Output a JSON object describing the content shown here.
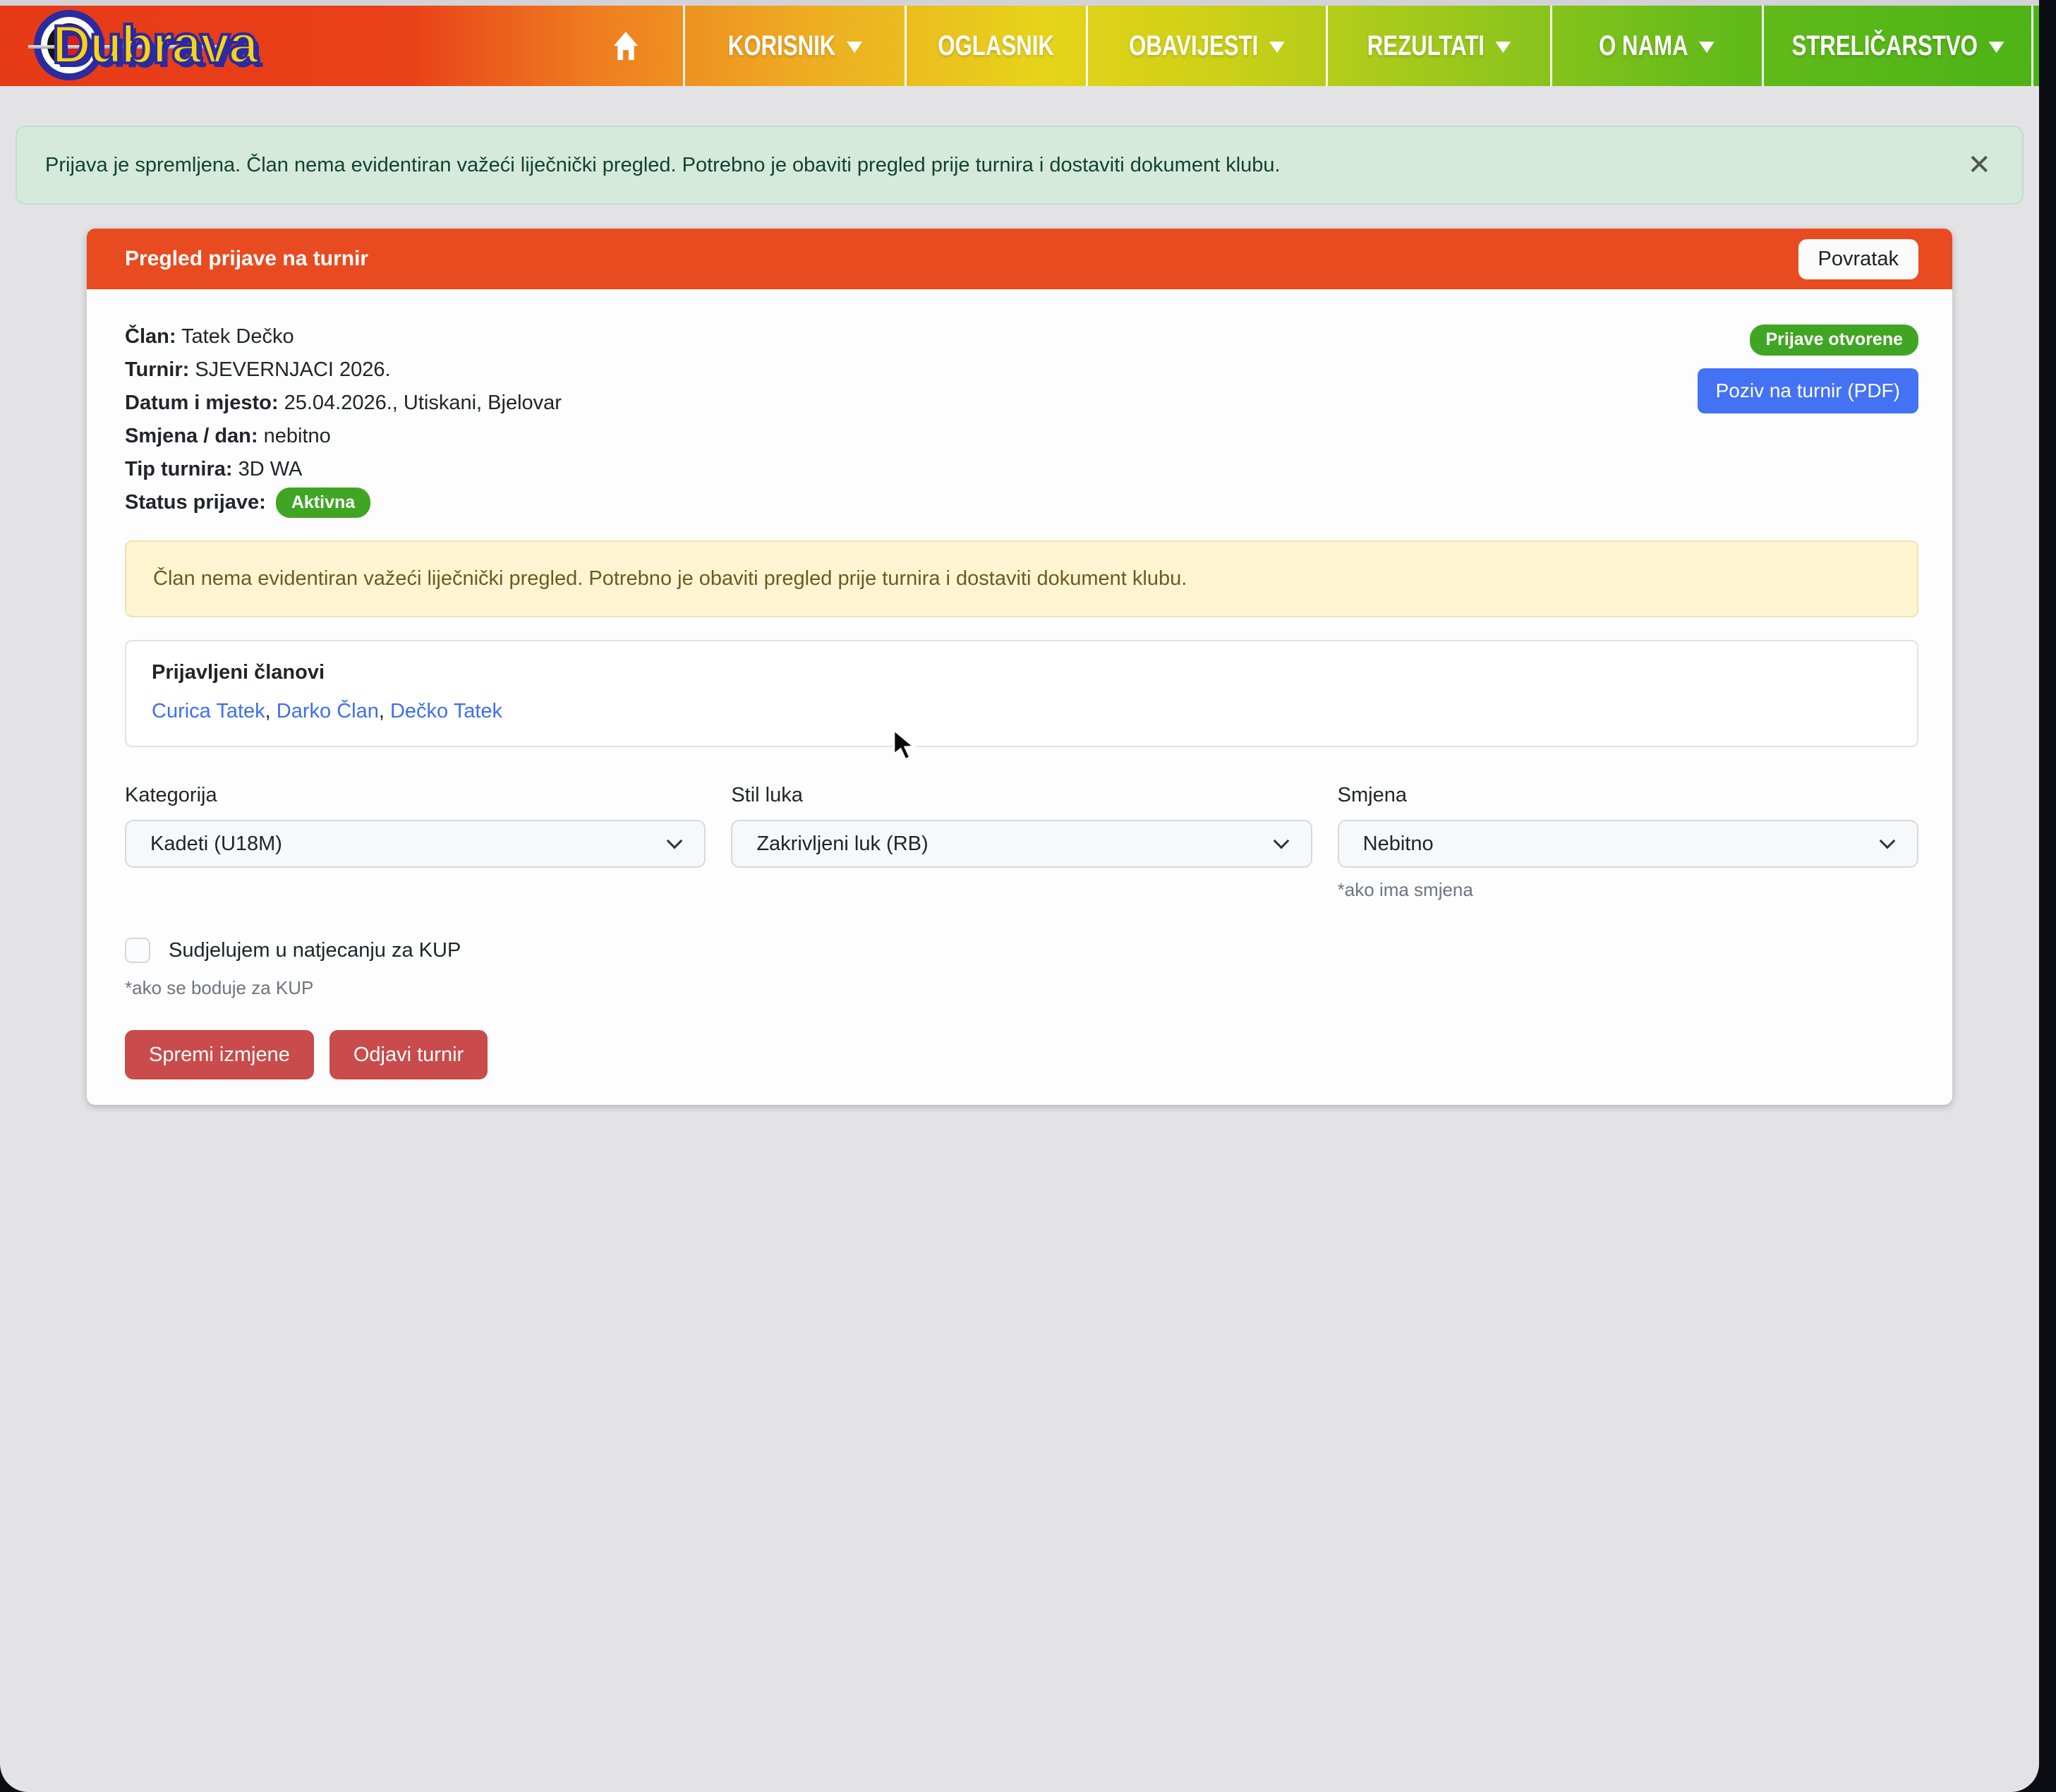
{
  "nav": {
    "logo_text": "Dubrava",
    "home_icon": "home-icon",
    "items": [
      {
        "label": "KORISNIK",
        "dropdown": true
      },
      {
        "label": "OGLASNIK",
        "dropdown": false
      },
      {
        "label": "OBAVIJESTI",
        "dropdown": true
      },
      {
        "label": "REZULTATI",
        "dropdown": true
      },
      {
        "label": "O NAMA",
        "dropdown": true
      },
      {
        "label": "STRELIČARSTVO",
        "dropdown": true
      }
    ]
  },
  "alert": {
    "text": "Prijava je spremljena. Član nema evidentiran važeći liječnički pregled. Potrebno je obaviti pregled prije turnira i dostaviti dokument klubu.",
    "close_icon": "✕"
  },
  "card": {
    "header": {
      "title": "Pregled prijave na turnir",
      "back_button": "Povratak"
    },
    "details": [
      {
        "label": "Član:",
        "value": "Tatek Dečko"
      },
      {
        "label": "Turnir:",
        "value": "SJEVERNJACI 2026."
      },
      {
        "label": "Datum i mjesto:",
        "value": "25.04.2026., Utiskani, Bjelovar"
      },
      {
        "label": "Smjena / dan:",
        "value": "nebitno"
      },
      {
        "label": "Tip turnira:",
        "value": "3D WA"
      }
    ],
    "status": {
      "label": "Status prijave:",
      "badge": "Aktivna"
    },
    "registration_badge": "Prijave otvorene",
    "pdf_button": "Poziv na turnir (PDF)",
    "warning": "Član nema evidentiran važeći liječnički pregled. Potrebno je obaviti pregled prije turnira i dostaviti dokument klubu.",
    "members": {
      "title": "Prijavljeni članovi",
      "names": [
        "Curica Tatek",
        "Darko Član",
        "Dečko Tatek"
      ]
    },
    "form": {
      "category": {
        "label": "Kategorija",
        "value": "Kadeti (U18M)"
      },
      "bow_style": {
        "label": "Stil luka",
        "value": "Zakrivljeni luk (RB)"
      },
      "shift": {
        "label": "Smjena",
        "value": "Nebitno",
        "hint": "*ako ima smjena"
      },
      "kup": {
        "label": "Sudjelujem u natjecanju za KUP",
        "hint": "*ako se boduje za KUP",
        "checked": false
      },
      "save_button": "Spremi izmjene",
      "unregister_button": "Odjavi turnir"
    }
  },
  "colors": {
    "header_orange": "#e94b20",
    "success_green": "#41a524",
    "pdf_blue": "#4372f4",
    "danger_red": "#c94b4b",
    "alert_bg": "#d6e9dd",
    "warning_bg": "#fdf5d2",
    "link_blue": "#3d6ef4"
  }
}
